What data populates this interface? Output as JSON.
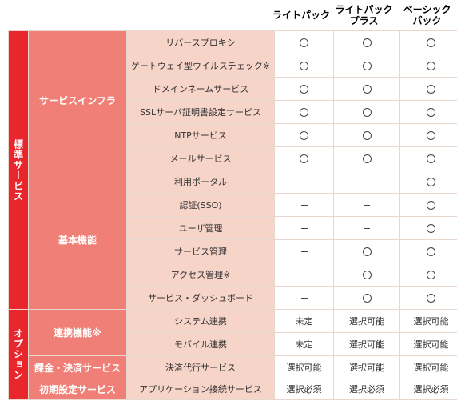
{
  "headers": [
    "ライトパック",
    "ライトパック\nプラス",
    "ベーシック\nパック"
  ],
  "sections": {
    "standard": "標準サービス",
    "option": "オプション"
  },
  "categories": {
    "infra": "サービスインフラ",
    "basic": "基本機能",
    "link": "連携機能※",
    "billing": "課金・決済サービス",
    "initial": "初期設定サービス"
  },
  "rows": [
    {
      "feature": "リバースプロキシ",
      "v": [
        "○",
        "○",
        "○"
      ]
    },
    {
      "feature": "ゲートウェイ型ウイルスチェック※",
      "v": [
        "○",
        "○",
        "○"
      ]
    },
    {
      "feature": "ドメインネームサービス",
      "v": [
        "○",
        "○",
        "○"
      ]
    },
    {
      "feature": "SSLサーバ証明書設定サービス",
      "v": [
        "○",
        "○",
        "○"
      ]
    },
    {
      "feature": "NTPサービス",
      "v": [
        "○",
        "○",
        "○"
      ]
    },
    {
      "feature": "メールサービス",
      "v": [
        "○",
        "○",
        "○"
      ]
    },
    {
      "feature": "利用ポータル",
      "v": [
        "−",
        "−",
        "○"
      ]
    },
    {
      "feature": "認証(SSO)",
      "v": [
        "−",
        "−",
        "○"
      ]
    },
    {
      "feature": "ユーザ管理",
      "v": [
        "−",
        "−",
        "○"
      ]
    },
    {
      "feature": "サービス管理",
      "v": [
        "−",
        "○",
        "○"
      ]
    },
    {
      "feature": "アクセス管理※",
      "v": [
        "−",
        "○",
        "○"
      ]
    },
    {
      "feature": "サービス・ダッシュボード",
      "v": [
        "−",
        "○",
        "○"
      ]
    },
    {
      "feature": "システム連携",
      "v": [
        "未定",
        "選択可能",
        "選択可能"
      ]
    },
    {
      "feature": "モバイル連携",
      "v": [
        "未定",
        "選択可能",
        "選択可能"
      ]
    },
    {
      "feature": "決済代行サービス",
      "v": [
        "選択可能",
        "選択可能",
        "選択可能"
      ]
    },
    {
      "feature": "アプリケーション接続サービス",
      "v": [
        "選択必須",
        "選択必須",
        "選択必須"
      ]
    }
  ]
}
